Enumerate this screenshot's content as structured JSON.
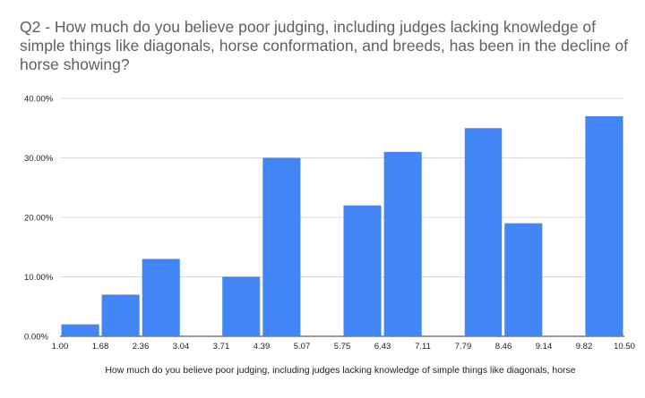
{
  "chart_data": {
    "type": "histogram",
    "title": "Q2 - How much do you believe poor judging, including judges lacking knowledge of simple things like diagonals, horse conformation, and breeds, has been in the decline of horse showing?",
    "xlabel": "How much do you believe poor judging, including judges lacking knowledge of simple things like diagonals, horse",
    "ylabel": "",
    "x_ticks": [
      "1.00",
      "1.68",
      "2.36",
      "3.04",
      "3.71",
      "4.39",
      "5.07",
      "5.75",
      "6.43",
      "7.11",
      "7.79",
      "8.46",
      "9.14",
      "9.82",
      "10.50"
    ],
    "y_ticks": [
      "0.00%",
      "10.00%",
      "20.00%",
      "30.00%",
      "40.00%"
    ],
    "ylim": [
      0,
      40
    ],
    "xlim": [
      1.0,
      10.5
    ],
    "bins": [
      {
        "start": 1.0,
        "end": 1.68,
        "value": 2
      },
      {
        "start": 1.68,
        "end": 2.36,
        "value": 7
      },
      {
        "start": 2.36,
        "end": 3.04,
        "value": 13
      },
      {
        "start": 3.04,
        "end": 3.71,
        "value": 0
      },
      {
        "start": 3.71,
        "end": 4.39,
        "value": 10
      },
      {
        "start": 4.39,
        "end": 5.07,
        "value": 30
      },
      {
        "start": 5.07,
        "end": 5.75,
        "value": 0
      },
      {
        "start": 5.75,
        "end": 6.43,
        "value": 22
      },
      {
        "start": 6.43,
        "end": 7.11,
        "value": 31
      },
      {
        "start": 7.11,
        "end": 7.79,
        "value": 0
      },
      {
        "start": 7.79,
        "end": 8.46,
        "value": 35
      },
      {
        "start": 8.46,
        "end": 9.14,
        "value": 19
      },
      {
        "start": 9.14,
        "end": 9.82,
        "value": 0
      },
      {
        "start": 9.82,
        "end": 10.5,
        "value": 37
      }
    ],
    "bar_color": "#4285f4",
    "grid": true
  }
}
